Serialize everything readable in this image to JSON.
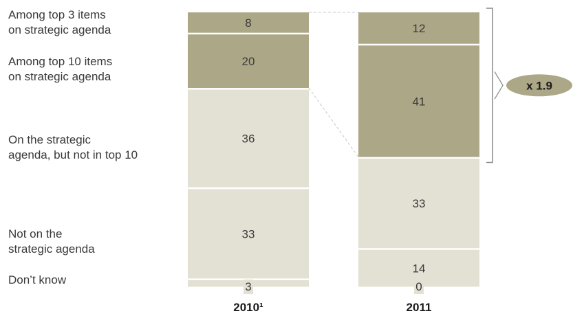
{
  "chart_data": {
    "type": "bar",
    "stacked": true,
    "normalized": true,
    "categories": [
      "2010¹",
      "2011"
    ],
    "segment_labels": [
      "Among top 3 items\non strategic agenda",
      "Among top 10 items\non strategic agenda",
      "On the strategic\nagenda, but not in top 10",
      "Not on the\nstrategic agenda",
      "Don’t know"
    ],
    "series": [
      {
        "values": [
          8,
          12
        ]
      },
      {
        "values": [
          20,
          41
        ]
      },
      {
        "values": [
          36,
          33
        ]
      },
      {
        "values": [
          33,
          14
        ]
      },
      {
        "values": [
          3,
          0
        ]
      }
    ],
    "annotation": "x 1.9",
    "colors": {
      "dark": "#aca787",
      "light": "#e3e1d4",
      "divider": "#ffffff",
      "annotation_fill": "#aca787",
      "bracket": "#888888",
      "connector": "#c8c8c8"
    }
  }
}
